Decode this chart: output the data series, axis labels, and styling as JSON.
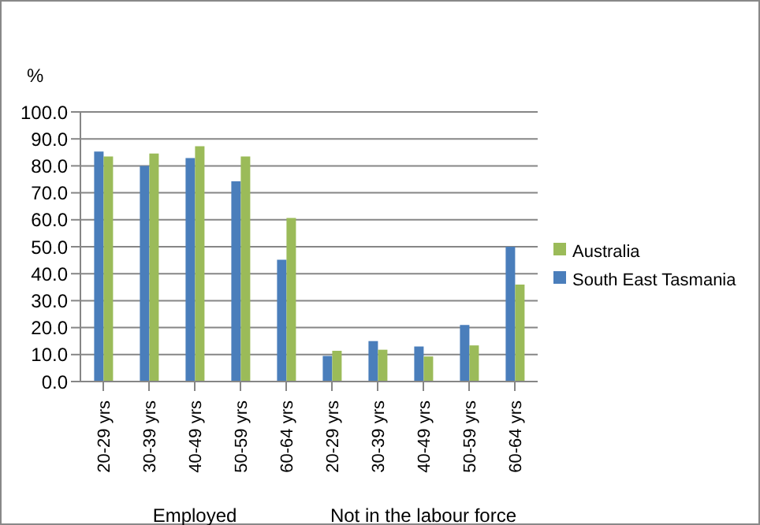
{
  "chart_data": {
    "type": "bar",
    "ylabel": "%",
    "categories": [
      "20-29 yrs",
      "30-39 yrs",
      "40-49 yrs",
      "50-59 yrs",
      "60-64 yrs",
      "20-29 yrs",
      "30-39 yrs",
      "40-49 yrs",
      "50-59 yrs",
      "60-64 yrs"
    ],
    "series": [
      {
        "name": "South East Tasmania",
        "color": "#4a7ebb",
        "values": [
          85.3,
          80,
          82.9,
          74.3,
          45.2,
          9.5,
          15,
          13,
          21,
          50
        ]
      },
      {
        "name": "Australia",
        "color": "#9bbb59",
        "values": [
          83.5,
          84.6,
          87.3,
          83.5,
          60.7,
          11.4,
          11.8,
          9.3,
          13.4,
          36
        ]
      }
    ],
    "annotations": [
      "Employed",
      "Not in the labour force"
    ],
    "ylim": [
      0,
      100
    ],
    "yticks": [
      {
        "value": 0,
        "label": "0.0"
      },
      {
        "value": 10,
        "label": "10.0"
      },
      {
        "value": 20,
        "label": "20.0"
      },
      {
        "value": 30,
        "label": "30.0"
      },
      {
        "value": 40,
        "label": "40.0"
      },
      {
        "value": 50,
        "label": "50.0"
      },
      {
        "value": 60,
        "label": "60.0"
      },
      {
        "value": 70,
        "label": "70.0"
      },
      {
        "value": 80,
        "label": "80.0"
      },
      {
        "value": 90,
        "label": "90.0"
      },
      {
        "value": 100,
        "label": "100.0"
      }
    ],
    "grid": "y",
    "legend": "right"
  }
}
